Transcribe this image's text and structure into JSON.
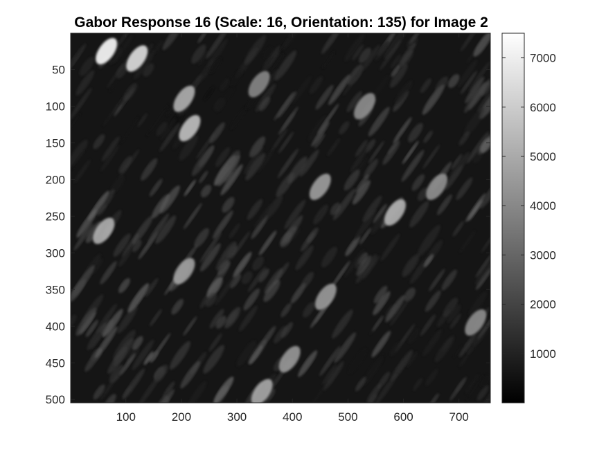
{
  "chart_data": {
    "type": "heatmap",
    "title": "Gabor Response 16 (Scale: 16, Orientation: 135) for Image 2",
    "xlabel": "",
    "ylabel": "",
    "xlim": [
      0.5,
      756.5
    ],
    "ylim": [
      0.5,
      504.5
    ],
    "y_reversed": true,
    "x_ticks": [
      100,
      200,
      300,
      400,
      500,
      600,
      700
    ],
    "x_tick_labels": [
      "100",
      "200",
      "300",
      "400",
      "500",
      "600",
      "700"
    ],
    "y_ticks": [
      50,
      100,
      150,
      200,
      250,
      300,
      350,
      400,
      450,
      500
    ],
    "y_tick_labels": [
      "50",
      "100",
      "150",
      "200",
      "250",
      "300",
      "350",
      "400",
      "450",
      "500"
    ],
    "colormap": "gray",
    "colorbar": {
      "range": [
        0,
        7500
      ],
      "ticks": [
        1000,
        2000,
        3000,
        4000,
        5000,
        6000,
        7000
      ],
      "tick_labels": [
        "1000",
        "2000",
        "3000",
        "4000",
        "5000",
        "6000",
        "7000"
      ]
    },
    "bright_spots": [
      {
        "x": 65,
        "y": 25,
        "value": 7400
      },
      {
        "x": 120,
        "y": 35,
        "value": 6600
      },
      {
        "x": 205,
        "y": 90,
        "value": 5200
      },
      {
        "x": 215,
        "y": 130,
        "value": 5700
      },
      {
        "x": 340,
        "y": 70,
        "value": 4000
      },
      {
        "x": 450,
        "y": 210,
        "value": 4700
      },
      {
        "x": 530,
        "y": 100,
        "value": 4200
      },
      {
        "x": 585,
        "y": 245,
        "value": 5300
      },
      {
        "x": 60,
        "y": 270,
        "value": 5200
      },
      {
        "x": 205,
        "y": 325,
        "value": 4800
      },
      {
        "x": 460,
        "y": 360,
        "value": 4600
      },
      {
        "x": 395,
        "y": 445,
        "value": 4500
      },
      {
        "x": 345,
        "y": 490,
        "value": 5000
      },
      {
        "x": 730,
        "y": 395,
        "value": 4200
      },
      {
        "x": 660,
        "y": 210,
        "value": 4300
      }
    ]
  }
}
